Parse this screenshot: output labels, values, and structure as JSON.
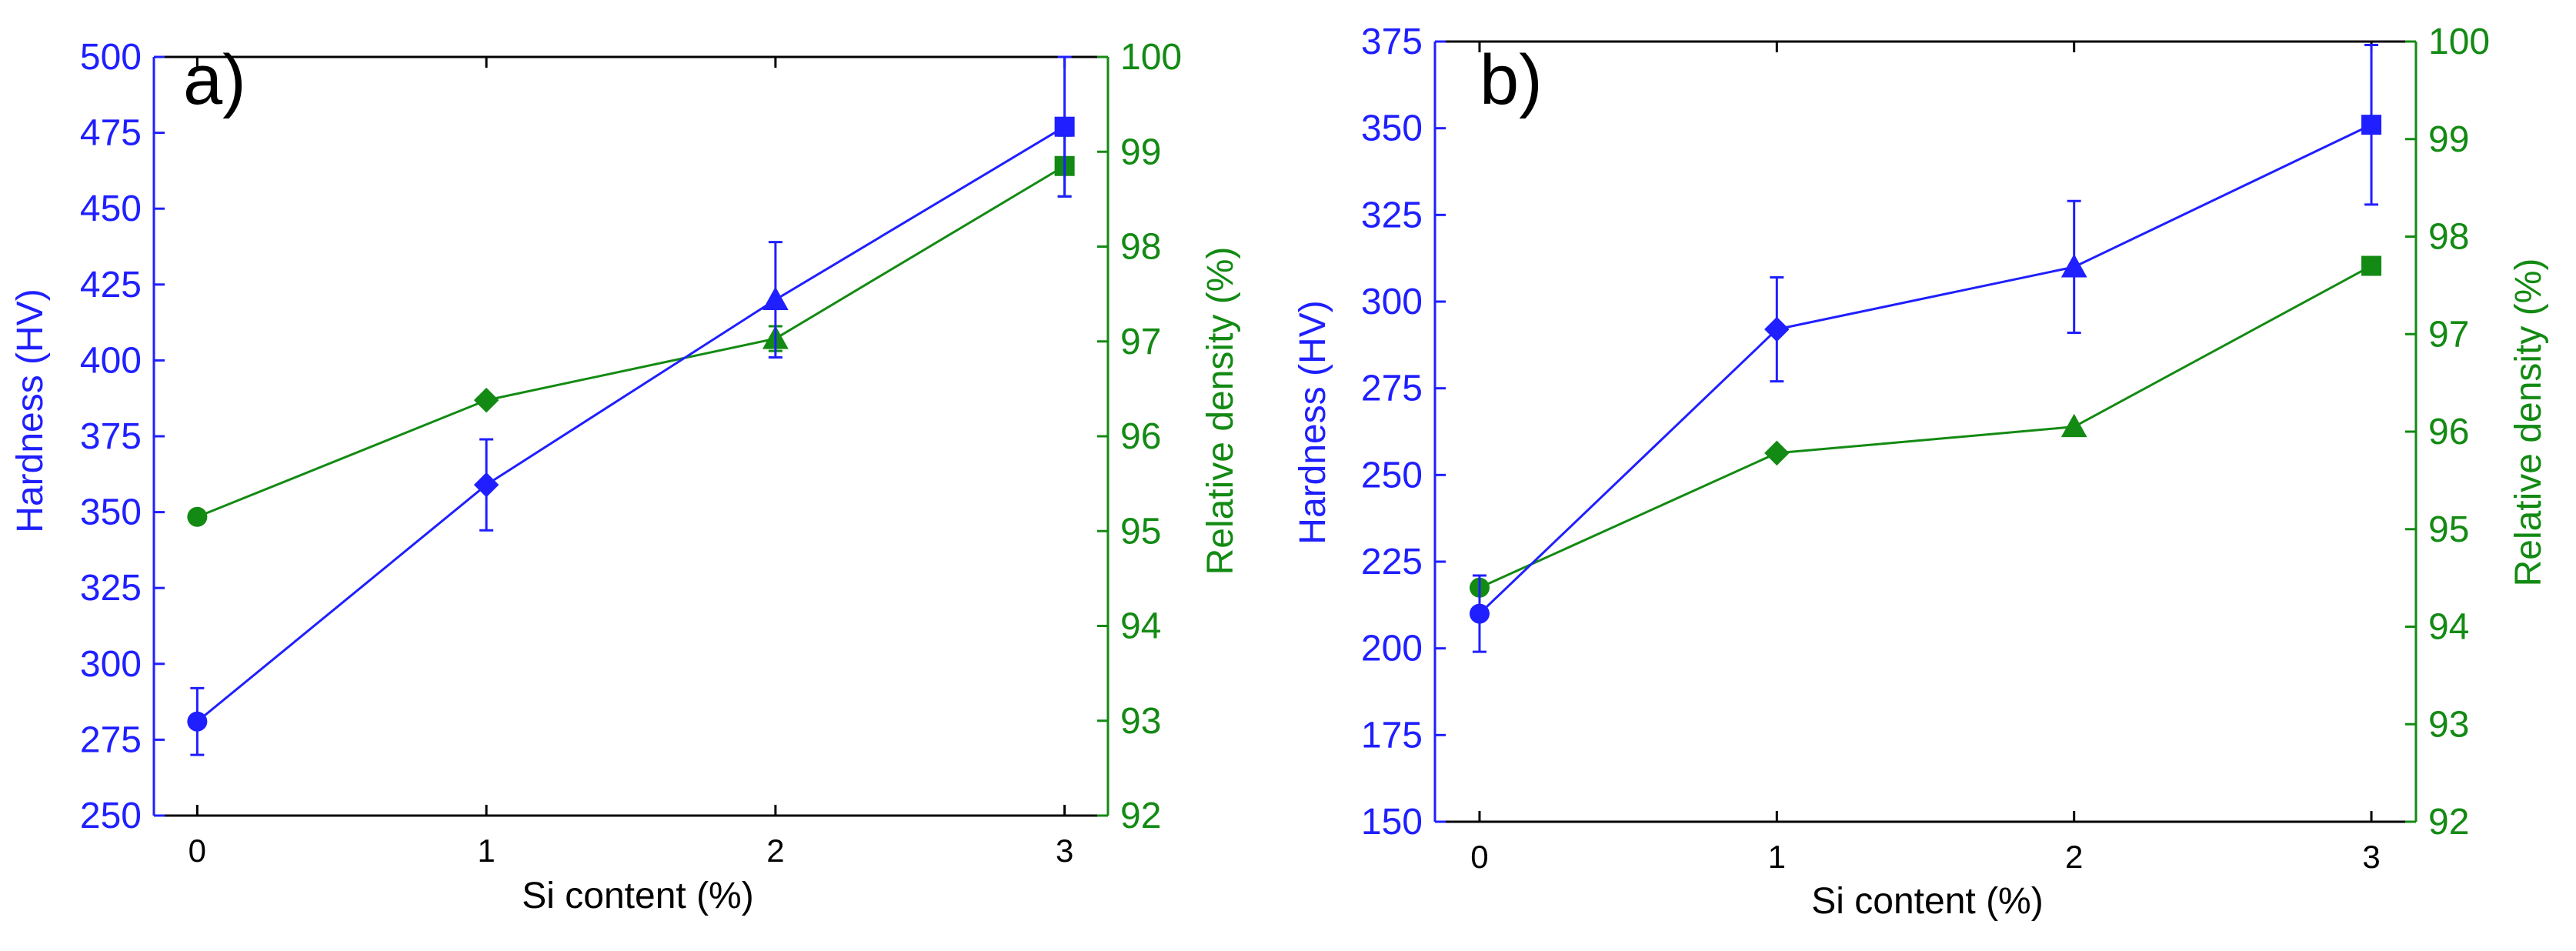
{
  "colors": {
    "hardness": "#1f1fff",
    "density": "#138a13",
    "axis": "#000000"
  },
  "chart_data": [
    {
      "type": "line",
      "panel_label": "a)",
      "xlabel": "Si content (%)",
      "ylabel": "Hardness (HV)",
      "y2label": "Relative density (%)",
      "x": [
        0,
        1,
        2,
        3
      ],
      "xlim": [
        -0.15,
        3.15
      ],
      "ylim": [
        250,
        500
      ],
      "y2lim": [
        92,
        100
      ],
      "xticks": [
        "0",
        "1",
        "2",
        "3"
      ],
      "yticks": [
        "250",
        "275",
        "300",
        "325",
        "350",
        "375",
        "400",
        "425",
        "450",
        "475",
        "500"
      ],
      "y2ticks": [
        "92",
        "93",
        "94",
        "95",
        "96",
        "97",
        "98",
        "99",
        "100"
      ],
      "grid": false,
      "series": [
        {
          "axis": "left",
          "color": "#1f1fff",
          "values": [
            281,
            359,
            420,
            477
          ],
          "error": [
            11,
            15,
            19,
            23
          ],
          "markers": [
            "circle",
            "diamond",
            "triangle",
            "square"
          ]
        },
        {
          "axis": "right",
          "color": "#138a13",
          "values": [
            95.15,
            96.38,
            97.03,
            98.85
          ],
          "error": [
            0,
            0,
            0.13,
            0.32
          ],
          "markers": [
            "circle",
            "diamond",
            "triangle",
            "square"
          ]
        }
      ]
    },
    {
      "type": "line",
      "panel_label": "b)",
      "xlabel": "Si content (%)",
      "ylabel": "Hardness (HV)",
      "y2label": "Relative density (%)",
      "x": [
        0,
        1,
        2,
        3
      ],
      "xlim": [
        -0.15,
        3.15
      ],
      "ylim": [
        150,
        375
      ],
      "y2lim": [
        92,
        100
      ],
      "xticks": [
        "0",
        "1",
        "2",
        "3"
      ],
      "yticks": [
        "150",
        "175",
        "200",
        "225",
        "250",
        "275",
        "300",
        "325",
        "350",
        "375"
      ],
      "y2ticks": [
        "92",
        "93",
        "94",
        "95",
        "96",
        "97",
        "98",
        "99",
        "100"
      ],
      "grid": false,
      "series": [
        {
          "axis": "left",
          "color": "#1f1fff",
          "values": [
            210,
            292,
            310,
            351
          ],
          "error": [
            11,
            15,
            19,
            23
          ],
          "markers": [
            "circle",
            "diamond",
            "triangle",
            "square"
          ]
        },
        {
          "axis": "right",
          "color": "#138a13",
          "values": [
            94.4,
            95.78,
            96.05,
            97.7
          ],
          "error": [
            0,
            0,
            0,
            0
          ],
          "markers": [
            "circle",
            "diamond",
            "triangle",
            "square"
          ]
        }
      ]
    }
  ]
}
